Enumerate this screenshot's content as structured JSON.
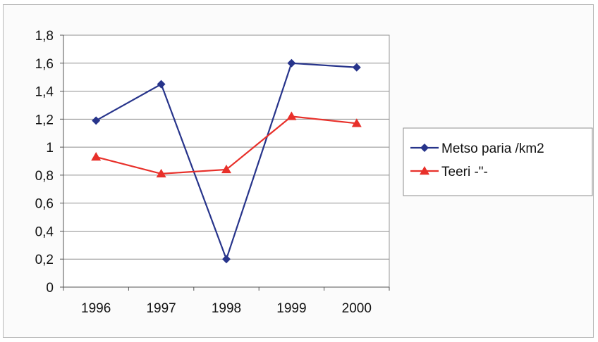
{
  "chart_data": {
    "type": "line",
    "title": "",
    "xlabel": "",
    "ylabel": "",
    "categories": [
      "1996",
      "1997",
      "1998",
      "1999",
      "2000"
    ],
    "ylim": [
      0,
      1.8
    ],
    "yticks": [
      "0",
      "0,2",
      "0,4",
      "0,6",
      "0,8",
      "1",
      "1,2",
      "1,4",
      "1,6",
      "1,8"
    ],
    "grid": true,
    "legend_position": "right",
    "series": [
      {
        "name": "Metso paria /km2",
        "values": [
          1.19,
          1.45,
          0.2,
          1.6,
          1.57
        ],
        "color": "#27348b",
        "marker": "diamond"
      },
      {
        "name": "Teeri -\"-",
        "values": [
          0.93,
          0.81,
          0.84,
          1.22,
          1.17
        ],
        "color": "#e8302a",
        "marker": "triangle"
      }
    ]
  }
}
